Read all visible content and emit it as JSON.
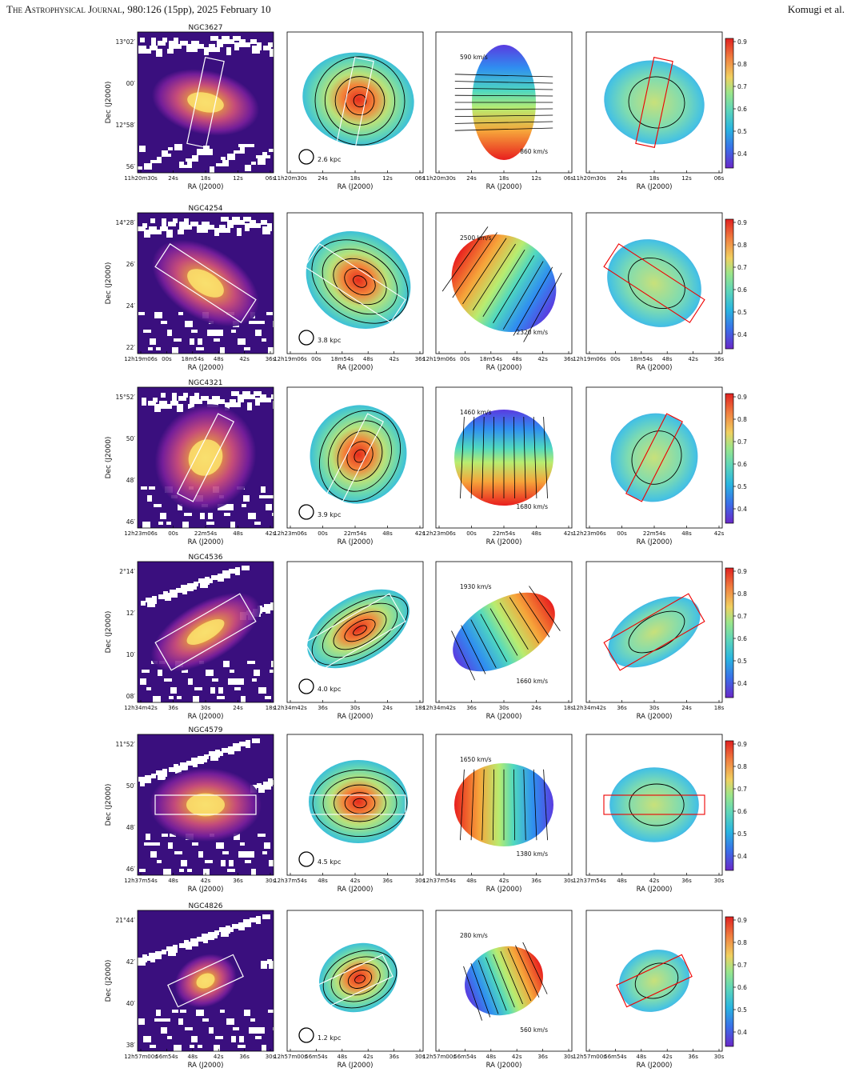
{
  "header": {
    "journal": "The Astrophysical Journal,",
    "citation": "980:126 (15pp), 2025 February 10",
    "authors": "Komugi et al."
  },
  "axis_labels": {
    "ra": "RA (J2000)",
    "dec": "Dec (J2000)"
  },
  "colorbar_ticks": [
    "0.9",
    "0.8",
    "0.7",
    "0.6",
    "0.5",
    "0.4"
  ],
  "colors": {
    "intensity": [
      "#1a0a6b",
      "#4b0f8f",
      "#8a1fa0",
      "#c8407e",
      "#ee7040",
      "#f9b233",
      "#fbe36e"
    ],
    "ratio": [
      "#6a28c8",
      "#3a6ee8",
      "#29b5e0",
      "#5fd6b8",
      "#9be58a",
      "#f0c060",
      "#f08040",
      "#e02020"
    ]
  },
  "galaxies": [
    {
      "name": "NGC3627",
      "beam": "2.6 kpc",
      "vel_high": "590 km/s",
      "vel_low": "860 km/s",
      "dec_ticks": [
        "13°02′",
        "00′",
        "12°58′",
        "56′"
      ],
      "ra1": [
        "11h20m30s",
        "24s",
        "18s",
        "12s",
        "06s"
      ],
      "ra2": [
        "11h20m30s",
        "24s",
        "18s",
        "12s",
        "06s"
      ],
      "ra3": [
        "11h20m30s",
        "24s",
        "18s",
        "12s",
        "06s"
      ],
      "ra4": [
        "11h20m30s",
        "24s",
        "18s",
        "12s",
        "06s"
      ]
    },
    {
      "name": "NGC4254",
      "beam": "3.8 kpc",
      "vel_high": "2500 km/s",
      "vel_low": "2320 km/s",
      "dec_ticks": [
        "14°28′",
        "26′",
        "24′",
        "22′"
      ],
      "ra1": [
        "12h19m06s",
        "00s",
        "18m54s",
        "48s",
        "42s",
        "36s"
      ],
      "ra2": [
        "12h19m06s",
        "00s",
        "18m54s",
        "48s",
        "42s",
        "36s"
      ],
      "ra3": [
        "12h19m06s",
        "00s",
        "18m54s",
        "48s",
        "42s",
        "36s"
      ],
      "ra4": [
        "12h19m06s",
        "00s",
        "18m54s",
        "48s",
        "42s",
        "36s"
      ]
    },
    {
      "name": "NGC4321",
      "beam": "3.9 kpc",
      "vel_high": "1460 km/s",
      "vel_low": "1680 km/s",
      "dec_ticks": [
        "15°52′",
        "50′",
        "48′",
        "46′"
      ],
      "ra1": [
        "12h23m06s",
        "00s",
        "22m54s",
        "48s",
        "42s"
      ],
      "ra2": [
        "12h23m06s",
        "00s",
        "22m54s",
        "48s",
        "42s"
      ],
      "ra3": [
        "12h23m06s",
        "00s",
        "22m54s",
        "48s",
        "42s"
      ],
      "ra4": [
        "12h23m06s",
        "00s",
        "22m54s",
        "48s",
        "42s"
      ]
    },
    {
      "name": "NGC4536",
      "beam": "4.0 kpc",
      "vel_high": "1930 km/s",
      "vel_low": "1660 km/s",
      "dec_ticks": [
        "2°14′",
        "12′",
        "10′",
        "08′"
      ],
      "ra1": [
        "12h34m42s",
        "36s",
        "30s",
        "24s",
        "18s"
      ],
      "ra2": [
        "12h34m42s",
        "36s",
        "30s",
        "24s",
        "18s"
      ],
      "ra3": [
        "12h34m42s",
        "36s",
        "30s",
        "24s",
        "18s"
      ],
      "ra4": [
        "12h34m42s",
        "36s",
        "30s",
        "24s",
        "18s"
      ]
    },
    {
      "name": "NGC4579",
      "beam": "4.5 kpc",
      "vel_high": "1650 km/s",
      "vel_low": "1380 km/s",
      "dec_ticks": [
        "11°52′",
        "50′",
        "48′",
        "46′"
      ],
      "ra1": [
        "12h37m54s",
        "48s",
        "42s",
        "36s",
        "30s"
      ],
      "ra2": [
        "12h37m54s",
        "48s",
        "42s",
        "36s",
        "30s"
      ],
      "ra3": [
        "12h37m54s",
        "48s",
        "42s",
        "36s",
        "30s"
      ],
      "ra4": [
        "12h37m54s",
        "48s",
        "42s",
        "36s",
        "30s"
      ]
    },
    {
      "name": "NGC4826",
      "beam": "1.2 kpc",
      "vel_high": "280 km/s",
      "vel_low": "560 km/s",
      "dec_ticks": [
        "21°44′",
        "42′",
        "40′",
        "38′"
      ],
      "ra1": [
        "12h57m00s",
        "56m54s",
        "48s",
        "42s",
        "36s",
        "30s"
      ],
      "ra2": [
        "12h57m00s",
        "56m54s",
        "48s",
        "42s",
        "36s",
        "30s"
      ],
      "ra3": [
        "12h57m00s",
        "56m54s",
        "48s",
        "42s",
        "36s",
        "30s"
      ],
      "ra4": [
        "12h57m00s",
        "56m54s",
        "48s",
        "42s",
        "36s",
        "30s"
      ]
    }
  ]
}
